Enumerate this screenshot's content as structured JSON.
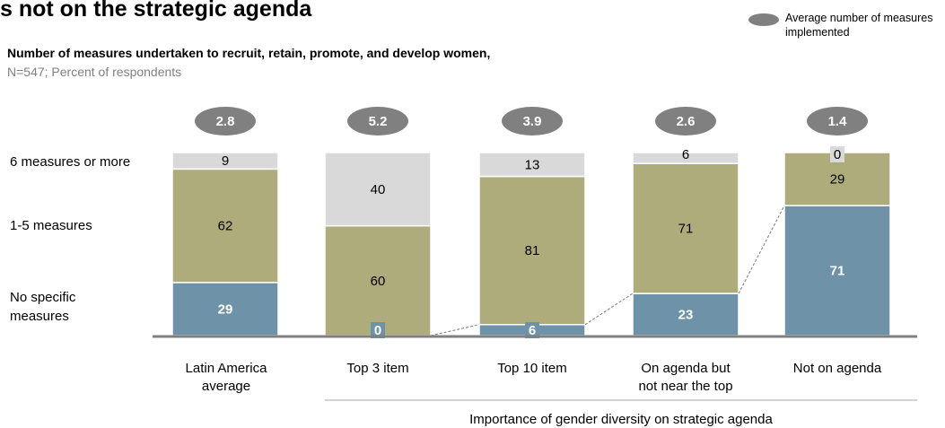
{
  "title": "s not on the strategic agenda",
  "subtitle": "Number of measures undertaken to recruit, retain, promote, and develop women,",
  "note": "N=547; Percent of respondents",
  "legend": {
    "label": "Average number of measures implemented",
    "color": "#808080"
  },
  "chart_data": {
    "type": "bar",
    "stacked": true,
    "categories": [
      "Latin America average",
      "Top 3 item",
      "Top 10 item",
      "On agenda but not near the top",
      "Not on agenda"
    ],
    "series": [
      {
        "name": "No specific measures",
        "color": "#6e92a8",
        "values": [
          29,
          0,
          6,
          23,
          71
        ]
      },
      {
        "name": "1-5 measures",
        "color": "#aeac7a",
        "values": [
          62,
          60,
          81,
          71,
          29
        ]
      },
      {
        "name": "6 measures or more",
        "color": "#d9d9d9",
        "values": [
          9,
          40,
          13,
          6,
          0
        ]
      }
    ],
    "averages": [
      "2.8",
      "5.2",
      "3.9",
      "2.6",
      "1.4"
    ],
    "xlabel": "Importance of gender diversity on strategic agenda",
    "ylim": [
      0,
      100
    ],
    "grid": false,
    "legend_position": "top-right"
  }
}
